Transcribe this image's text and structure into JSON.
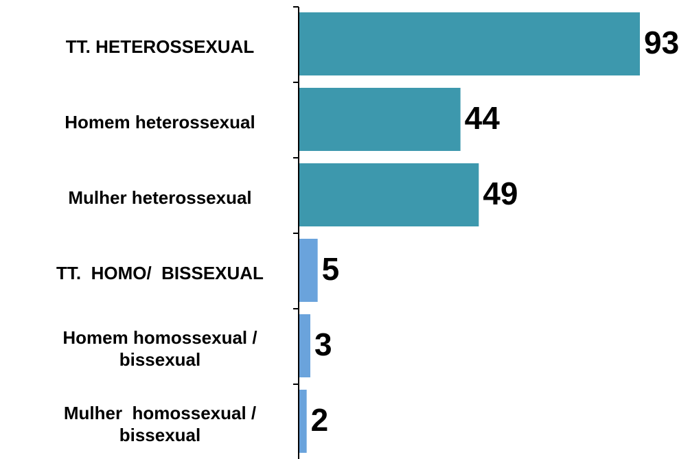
{
  "chart_data": {
    "type": "barh",
    "categories": [
      "TT. HETEROSSEXUAL",
      "Homem heterossexual",
      "Mulher heterossexual",
      "TT.  HOMO/  BISSEXUAL",
      "Homem homossexual / bissexual",
      "Mulher  homossexual / bissexual"
    ],
    "values": [
      93,
      44,
      49,
      5,
      3,
      2
    ],
    "colors": [
      "#3d98ad",
      "#3d98ad",
      "#3d98ad",
      "#6aa3dc",
      "#6aa3dc",
      "#6aa3dc"
    ]
  }
}
